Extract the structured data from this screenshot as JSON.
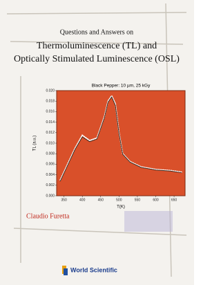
{
  "cover": {
    "kicker": "Questions and Answers on",
    "title_line1": "Thermoluminescence (TL) and",
    "title_line2": "Optically Stimulated Luminescence (OSL)",
    "author": "Claudio Furetta",
    "publisher": "World Scientific"
  },
  "chart_data": {
    "type": "line",
    "title": "Black Pepper: 10  µm, 25 kGy",
    "x_label": "T(K)",
    "y_label": "TL (a.u.)",
    "x": [
      340,
      360,
      380,
      400,
      420,
      440,
      460,
      470,
      480,
      490,
      500,
      510,
      530,
      560,
      600,
      640,
      670
    ],
    "series": [
      {
        "color": "#ffffff",
        "dotted": true,
        "values": [
          0.003,
          0.006,
          0.009,
          0.0115,
          0.0105,
          0.011,
          0.015,
          0.018,
          0.019,
          0.0175,
          0.012,
          0.008,
          0.0065,
          0.0055,
          0.005,
          0.0048,
          0.0045
        ]
      },
      {
        "color": "#3a2a20",
        "dotted": false,
        "values": [
          0.0028,
          0.0058,
          0.0088,
          0.0112,
          0.0103,
          0.0108,
          0.0148,
          0.0178,
          0.0188,
          0.0172,
          0.0118,
          0.0079,
          0.0064,
          0.0054,
          0.0049,
          0.0047,
          0.0044
        ]
      }
    ],
    "xlim": [
      330,
      680
    ],
    "ylim": [
      0,
      0.02
    ],
    "xticks": [
      350,
      400,
      450,
      500,
      550,
      600,
      650
    ],
    "yticks": [
      {
        "value": 0,
        "label": "0.000"
      },
      {
        "value": 0.002,
        "label": "0.002"
      },
      {
        "value": 0.004,
        "label": "0.004"
      },
      {
        "value": 0.006,
        "label": "0.006"
      },
      {
        "value": 0.008,
        "label": "0.008"
      },
      {
        "value": 0.01,
        "label": "0.010"
      },
      {
        "value": 0.012,
        "label": "0.012"
      },
      {
        "value": 0.014,
        "label": "0.014"
      },
      {
        "value": 0.016,
        "label": "0.016"
      },
      {
        "value": 0.018,
        "label": "0.018"
      },
      {
        "value": 0.02,
        "label": "0.020"
      }
    ]
  }
}
